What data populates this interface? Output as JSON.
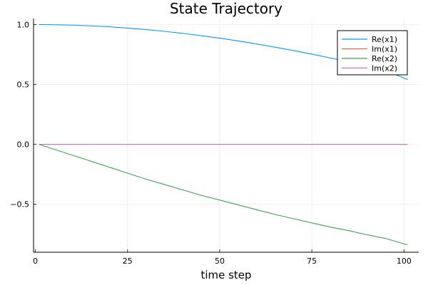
{
  "chart_data": {
    "type": "line",
    "title": "State Trajectory",
    "xlabel": "time step",
    "ylabel": "",
    "xlim": [
      -0.5,
      104
    ],
    "ylim": [
      -0.9,
      1.05
    ],
    "xticks": [
      0,
      25,
      50,
      75,
      100
    ],
    "xtick_labels": [
      "0",
      "25",
      "50",
      "75",
      "100"
    ],
    "yticks": [
      1.0,
      0.5,
      0.0,
      -0.5
    ],
    "ytick_labels": [
      "1.0",
      "0.5",
      "0.0",
      "−0.5"
    ],
    "grid": true,
    "legend_position": "top-right",
    "series": [
      {
        "name": "Re(x1)",
        "color": "#009af9",
        "x": [
          1,
          5,
          10,
          15,
          20,
          25,
          30,
          35,
          40,
          45,
          50,
          55,
          60,
          65,
          70,
          75,
          80,
          85,
          90,
          95,
          101
        ],
        "y": [
          1.0,
          0.998,
          0.995,
          0.989,
          0.981,
          0.97,
          0.958,
          0.943,
          0.926,
          0.907,
          0.886,
          0.863,
          0.838,
          0.811,
          0.783,
          0.753,
          0.721,
          0.688,
          0.653,
          0.617,
          0.54
        ]
      },
      {
        "name": "Im(x1)",
        "color": "#e26f46",
        "x": [
          1,
          101
        ],
        "y": [
          0.0,
          0.0
        ]
      },
      {
        "name": "Re(x2)",
        "color": "#3da44d",
        "x": [
          1,
          5,
          10,
          15,
          20,
          25,
          30,
          35,
          40,
          45,
          50,
          55,
          60,
          65,
          70,
          75,
          80,
          85,
          90,
          95,
          101
        ],
        "y": [
          0.0,
          -0.04,
          -0.09,
          -0.14,
          -0.19,
          -0.24,
          -0.29,
          -0.335,
          -0.38,
          -0.425,
          -0.465,
          -0.505,
          -0.545,
          -0.585,
          -0.62,
          -0.655,
          -0.69,
          -0.72,
          -0.755,
          -0.785,
          -0.84
        ]
      },
      {
        "name": "Im(x2)",
        "color": "#c271d2",
        "x": [
          1,
          101
        ],
        "y": [
          0.0,
          0.0
        ]
      }
    ]
  }
}
